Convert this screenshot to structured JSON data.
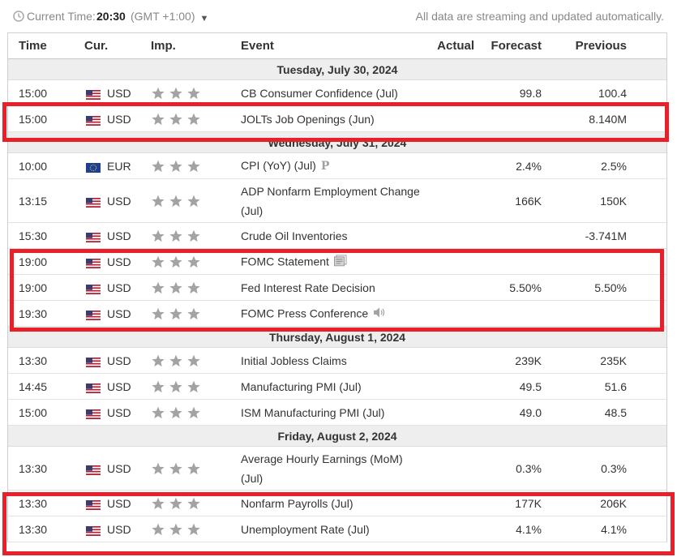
{
  "topbar": {
    "current_time_label": "Current Time:",
    "current_time_value": "20:30",
    "timezone": "(GMT +1:00)",
    "status_note": "All data are streaming and updated automatically."
  },
  "table": {
    "headers": {
      "time": "Time",
      "cur": "Cur.",
      "imp": "Imp.",
      "event": "Event",
      "actual": "Actual",
      "forecast": "Forecast",
      "previous": "Previous"
    },
    "days": [
      {
        "label": "Tuesday, July 30, 2024",
        "rows": [
          {
            "time": "15:00",
            "flag": "us",
            "cur": "USD",
            "event": "CB Consumer Confidence (Jul)",
            "icon": "",
            "actual": "",
            "forecast": "99.8",
            "previous": "100.4"
          },
          {
            "time": "15:00",
            "flag": "us",
            "cur": "USD",
            "event": "JOLTs Job Openings (Jun)",
            "icon": "",
            "actual": "",
            "forecast": "",
            "previous": "8.140M"
          }
        ]
      },
      {
        "label": "Wednesday, July 31, 2024",
        "rows": [
          {
            "time": "10:00",
            "flag": "eu",
            "cur": "EUR",
            "event": "CPI (YoY) (Jul)",
            "icon": "preliminary-icon",
            "actual": "",
            "forecast": "2.4%",
            "previous": "2.5%"
          },
          {
            "time": "13:15",
            "flag": "us",
            "cur": "USD",
            "event": "ADP Nonfarm Employment Change (Jul)",
            "icon": "",
            "actual": "",
            "forecast": "166K",
            "previous": "150K"
          },
          {
            "time": "15:30",
            "flag": "us",
            "cur": "USD",
            "event": "Crude Oil Inventories",
            "icon": "",
            "actual": "",
            "forecast": "",
            "previous": "-3.741M"
          },
          {
            "time": "19:00",
            "flag": "us",
            "cur": "USD",
            "event": "FOMC Statement",
            "icon": "document-icon",
            "actual": "",
            "forecast": "",
            "previous": ""
          },
          {
            "time": "19:00",
            "flag": "us",
            "cur": "USD",
            "event": "Fed Interest Rate Decision",
            "icon": "",
            "actual": "",
            "forecast": "5.50%",
            "previous": "5.50%"
          },
          {
            "time": "19:30",
            "flag": "us",
            "cur": "USD",
            "event": "FOMC Press Conference",
            "icon": "speaker-icon",
            "actual": "",
            "forecast": "",
            "previous": ""
          }
        ]
      },
      {
        "label": "Thursday, August 1, 2024",
        "rows": [
          {
            "time": "13:30",
            "flag": "us",
            "cur": "USD",
            "event": "Initial Jobless Claims",
            "icon": "",
            "actual": "",
            "forecast": "239K",
            "previous": "235K"
          },
          {
            "time": "14:45",
            "flag": "us",
            "cur": "USD",
            "event": "Manufacturing PMI (Jul)",
            "icon": "",
            "actual": "",
            "forecast": "49.5",
            "previous": "51.6"
          },
          {
            "time": "15:00",
            "flag": "us",
            "cur": "USD",
            "event": "ISM Manufacturing PMI (Jul)",
            "icon": "",
            "actual": "",
            "forecast": "49.0",
            "previous": "48.5"
          }
        ]
      },
      {
        "label": "Friday, August 2, 2024",
        "rows": [
          {
            "time": "13:30",
            "flag": "us",
            "cur": "USD",
            "event": "Average Hourly Earnings (MoM) (Jul)",
            "icon": "",
            "actual": "",
            "forecast": "0.3%",
            "previous": "0.3%"
          },
          {
            "time": "13:30",
            "flag": "us",
            "cur": "USD",
            "event": "Nonfarm Payrolls (Jul)",
            "icon": "",
            "actual": "",
            "forecast": "177K",
            "previous": "206K"
          },
          {
            "time": "13:30",
            "flag": "us",
            "cur": "USD",
            "event": "Unemployment Rate (Jul)",
            "icon": "",
            "actual": "",
            "forecast": "4.1%",
            "previous": "4.1%"
          }
        ]
      }
    ]
  },
  "colors": {
    "highlight": "#e8202a",
    "star": "#a3a3a3",
    "day_header_bg": "#eeeeef"
  }
}
